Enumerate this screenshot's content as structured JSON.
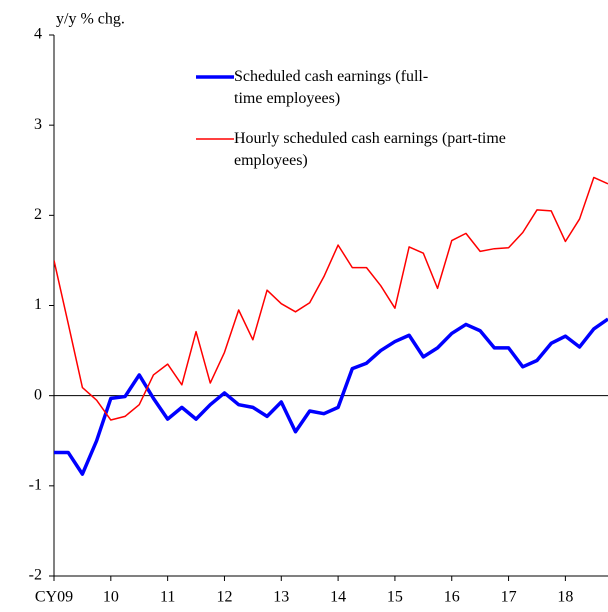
{
  "chart_data": {
    "type": "line",
    "y_axis_label": "y/y % chg.",
    "x": [
      2009,
      2009.25,
      2009.5,
      2009.75,
      2010,
      2010.25,
      2010.5,
      2010.75,
      2011,
      2011.25,
      2011.5,
      2011.75,
      2012,
      2012.25,
      2012.5,
      2012.75,
      2013,
      2013.25,
      2013.5,
      2013.75,
      2014,
      2014.25,
      2014.5,
      2014.75,
      2015,
      2015.25,
      2015.5,
      2015.75,
      2016,
      2016.25,
      2016.5,
      2016.75,
      2017,
      2017.25,
      2017.5,
      2017.75,
      2018,
      2018.25,
      2018.5,
      2018.75
    ],
    "series": [
      {
        "name": "Scheduled cash earnings (full-time employees)",
        "color": "#0000ff",
        "values": [
          -0.63,
          -0.63,
          -0.87,
          -0.5,
          -0.03,
          -0.01,
          0.23,
          -0.03,
          -0.26,
          -0.13,
          -0.26,
          -0.1,
          0.03,
          -0.1,
          -0.13,
          -0.23,
          -0.07,
          -0.4,
          -0.17,
          -0.2,
          -0.13,
          0.3,
          0.36,
          0.5,
          0.6,
          0.67,
          0.43,
          0.53,
          0.69,
          0.79,
          0.72,
          0.53,
          0.53,
          0.32,
          0.39,
          0.58,
          0.66,
          0.54,
          0.74,
          0.85
        ]
      },
      {
        "name": "Hourly scheduled cash earnings (part-time employees)",
        "color": "#ff0000",
        "values": [
          1.5,
          0.8,
          0.09,
          -0.05,
          -0.27,
          -0.23,
          -0.1,
          0.23,
          0.35,
          0.12,
          0.71,
          0.14,
          0.48,
          0.95,
          0.62,
          1.17,
          1.02,
          0.93,
          1.03,
          1.32,
          1.67,
          1.42,
          1.42,
          1.22,
          0.97,
          1.65,
          1.58,
          1.19,
          1.72,
          1.8,
          1.6,
          1.63,
          1.64,
          1.81,
          2.06,
          2.05,
          1.71,
          1.96,
          2.42,
          2.35
        ]
      }
    ],
    "xlim": [
      2009,
      2018.75
    ],
    "xticks": [
      {
        "value": 2009,
        "label": "CY09"
      },
      {
        "value": 2010,
        "label": "10"
      },
      {
        "value": 2011,
        "label": "11"
      },
      {
        "value": 2012,
        "label": "12"
      },
      {
        "value": 2013,
        "label": "13"
      },
      {
        "value": 2014,
        "label": "14"
      },
      {
        "value": 2015,
        "label": "15"
      },
      {
        "value": 2016,
        "label": "16"
      },
      {
        "value": 2017,
        "label": "17"
      },
      {
        "value": 2018,
        "label": "18"
      }
    ],
    "ylim": [
      -2,
      4
    ],
    "yticks": [
      -2,
      -1,
      0,
      1,
      2,
      3,
      4
    ],
    "grid": false
  }
}
